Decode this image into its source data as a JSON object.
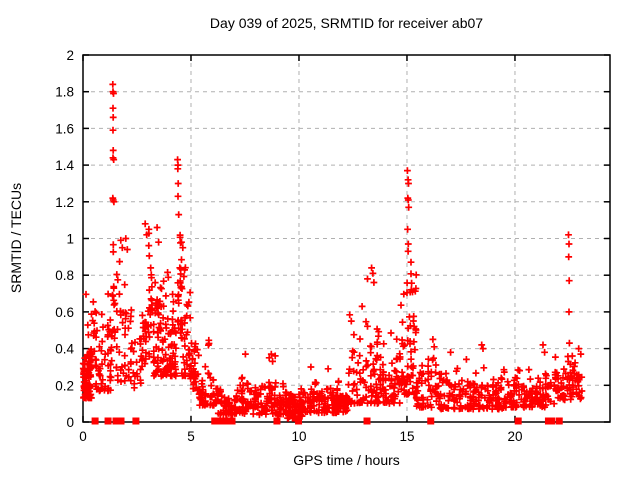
{
  "page": {
    "background": "#ffffff"
  },
  "chart_data": {
    "type": "scatter",
    "title": "Day 039 of 2025, SRMTID for receiver ab07",
    "xlabel": "GPS time / hours",
    "ylabel": "SRMTID / TECUs",
    "xlim": [
      0,
      24.4
    ],
    "ylim": [
      0,
      2
    ],
    "grid": true,
    "legend": "none",
    "marker": "plus",
    "zero_marker": "filled-square",
    "colors": {
      "marker": "#ff0000",
      "grid": "#b0b0b0",
      "axis": "#000000",
      "text": "#000000"
    },
    "xticks": [
      {
        "v": 0,
        "l": "0"
      },
      {
        "v": 5,
        "l": "5"
      },
      {
        "v": 10,
        "l": "10"
      },
      {
        "v": 15,
        "l": "15"
      },
      {
        "v": 20,
        "l": "20"
      }
    ],
    "yticks": [
      {
        "v": 0,
        "l": "0"
      },
      {
        "v": 0.2,
        "l": "0.2"
      },
      {
        "v": 0.4,
        "l": "0.4"
      },
      {
        "v": 0.6,
        "l": "0.6"
      },
      {
        "v": 0.8,
        "l": "0.8"
      },
      {
        "v": 1,
        "l": "1"
      },
      {
        "v": 1.2,
        "l": "1.2"
      },
      {
        "v": 1.4,
        "l": "1.4"
      },
      {
        "v": 1.6,
        "l": "1.6"
      },
      {
        "v": 1.8,
        "l": "1.8"
      },
      {
        "v": 2,
        "l": "2"
      }
    ],
    "clusters": [
      {
        "x0": 0.02,
        "x1": 0.38,
        "n": 90,
        "y0": 0.13,
        "y1": 0.43,
        "bias": 1.5,
        "seed": 1,
        "cpd": 14
      },
      {
        "x0": 0.12,
        "x1": 0.58,
        "n": 18,
        "y0": 0.35,
        "y1": 0.78,
        "bias": 1.1,
        "seed": 2,
        "cpd": 8
      },
      {
        "x0": 0.55,
        "x1": 1.35,
        "n": 55,
        "y0": 0.17,
        "y1": 0.8,
        "bias": 1.8,
        "seed": 3,
        "cpd": 8
      },
      {
        "x0": 1.34,
        "x1": 1.5,
        "n": 14,
        "y0": 0.3,
        "y1": 1.05,
        "bias": 1.0,
        "seed": 4,
        "cpd": 8
      },
      {
        "x0": 1.52,
        "x1": 2.3,
        "n": 45,
        "y0": 0.22,
        "y1": 1.0,
        "bias": 1.9,
        "seed": 5,
        "cpd": 8
      },
      {
        "x0": 2.3,
        "x1": 2.72,
        "n": 16,
        "y0": 0.18,
        "y1": 0.55,
        "bias": 1.4,
        "seed": 6,
        "cpd": 7
      },
      {
        "x0": 2.72,
        "x1": 3.22,
        "n": 45,
        "y0": 0.3,
        "y1": 1.07,
        "bias": 1.2,
        "seed": 7,
        "cpd": 8
      },
      {
        "x0": 3.22,
        "x1": 4.32,
        "n": 110,
        "y0": 0.25,
        "y1": 0.95,
        "bias": 1.5,
        "seed": 8,
        "cpd": 9
      },
      {
        "x0": 4.33,
        "x1": 4.58,
        "n": 22,
        "y0": 0.45,
        "y1": 1.12,
        "bias": 1.1,
        "seed": 9,
        "cpd": 8
      },
      {
        "x0": 4.55,
        "x1": 4.98,
        "n": 40,
        "y0": 0.25,
        "y1": 0.95,
        "bias": 1.8,
        "seed": 10,
        "cpd": 9
      },
      {
        "x0": 4.95,
        "x1": 5.38,
        "n": 30,
        "y0": 0.17,
        "y1": 0.55,
        "bias": 1.5,
        "seed": 11,
        "cpd": 9
      },
      {
        "x0": 5.35,
        "x1": 6.25,
        "n": 55,
        "y0": 0.09,
        "y1": 0.46,
        "bias": 1.7,
        "seed": 12,
        "cpd": 8
      },
      {
        "x0": 6.2,
        "x1": 9.45,
        "n": 200,
        "y0": 0.04,
        "y1": 0.27,
        "bias": 1.3,
        "seed": 13,
        "cpd": 8
      },
      {
        "x0": 9.45,
        "x1": 10.15,
        "n": 80,
        "y0": 0.02,
        "y1": 0.22,
        "bias": 1.5,
        "seed": 14,
        "cpd": 10
      },
      {
        "x0": 10.1,
        "x1": 12.25,
        "n": 150,
        "y0": 0.05,
        "y1": 0.27,
        "bias": 1.3,
        "seed": 15,
        "cpd": 8
      },
      {
        "x0": 12.25,
        "x1": 13.65,
        "n": 80,
        "y0": 0.1,
        "y1": 0.74,
        "bias": 1.8,
        "seed": 16,
        "cpd": 8
      },
      {
        "x0": 13.6,
        "x1": 14.75,
        "n": 75,
        "y0": 0.1,
        "y1": 0.62,
        "bias": 1.7,
        "seed": 17,
        "cpd": 8
      },
      {
        "x0": 14.7,
        "x1": 15.45,
        "n": 70,
        "y0": 0.15,
        "y1": 1.0,
        "bias": 1.5,
        "seed": 18,
        "cpd": 9
      },
      {
        "x0": 15.4,
        "x1": 16.55,
        "n": 60,
        "y0": 0.08,
        "y1": 0.42,
        "bias": 1.5,
        "seed": 19,
        "cpd": 8
      },
      {
        "x0": 16.5,
        "x1": 19.55,
        "n": 170,
        "y0": 0.07,
        "y1": 0.35,
        "bias": 1.5,
        "seed": 20,
        "cpd": 8
      },
      {
        "x0": 19.5,
        "x1": 21.85,
        "n": 130,
        "y0": 0.08,
        "y1": 0.32,
        "bias": 1.4,
        "seed": 21,
        "cpd": 8
      },
      {
        "x0": 21.85,
        "x1": 23.15,
        "n": 75,
        "y0": 0.12,
        "y1": 0.46,
        "bias": 1.2,
        "seed": 22,
        "cpd": 9
      }
    ],
    "outlier_points": [
      [
        1.38,
        1.84
      ],
      [
        1.39,
        1.8
      ],
      [
        1.41,
        1.79
      ],
      [
        1.39,
        1.71
      ],
      [
        1.4,
        1.66
      ],
      [
        1.39,
        1.59
      ],
      [
        1.4,
        1.48
      ],
      [
        1.39,
        1.44
      ],
      [
        1.42,
        1.43
      ],
      [
        1.38,
        1.22
      ],
      [
        1.4,
        1.21
      ],
      [
        1.43,
        1.2
      ],
      [
        1.75,
        0.99
      ],
      [
        1.82,
        0.95
      ],
      [
        1.98,
        1.0
      ],
      [
        2.05,
        0.94
      ],
      [
        2.88,
        1.08
      ],
      [
        2.95,
        1.02
      ],
      [
        3.05,
        1.05
      ],
      [
        3.43,
        1.06
      ],
      [
        3.5,
        0.98
      ],
      [
        4.38,
        1.43
      ],
      [
        4.4,
        1.4
      ],
      [
        4.39,
        1.38
      ],
      [
        4.41,
        1.3
      ],
      [
        4.4,
        1.23
      ],
      [
        4.43,
        1.13
      ],
      [
        4.56,
        0.98
      ],
      [
        4.62,
        0.95
      ],
      [
        7.52,
        0.37
      ],
      [
        8.62,
        0.35
      ],
      [
        8.72,
        0.37
      ],
      [
        8.9,
        0.36
      ],
      [
        8.78,
        0.33
      ],
      [
        10.55,
        0.3
      ],
      [
        11.35,
        0.29
      ],
      [
        12.42,
        0.55
      ],
      [
        12.92,
        0.63
      ],
      [
        13.17,
        0.78
      ],
      [
        13.36,
        0.84
      ],
      [
        13.42,
        0.81
      ],
      [
        13.47,
        0.76
      ],
      [
        15.02,
        1.37
      ],
      [
        15.05,
        1.32
      ],
      [
        15.07,
        1.3
      ],
      [
        15.04,
        1.22
      ],
      [
        15.06,
        1.21
      ],
      [
        15.08,
        1.17
      ],
      [
        15.03,
        1.05
      ],
      [
        15.06,
        0.97
      ],
      [
        15.05,
        0.93
      ],
      [
        16.2,
        0.45
      ],
      [
        16.26,
        0.41
      ],
      [
        17.02,
        0.38
      ],
      [
        18.46,
        0.42
      ],
      [
        18.52,
        0.4
      ],
      [
        21.3,
        0.42
      ],
      [
        21.37,
        0.38
      ],
      [
        22.48,
        1.02
      ],
      [
        22.5,
        0.97
      ],
      [
        22.49,
        0.9
      ],
      [
        22.51,
        0.77
      ],
      [
        22.5,
        0.6
      ],
      [
        22.52,
        0.43
      ],
      [
        22.95,
        0.4
      ],
      [
        23.05,
        0.37
      ]
    ],
    "zero_marker_hours": [
      0.56,
      1.16,
      1.53,
      1.76,
      2.45,
      6.1,
      6.4,
      6.6,
      6.9,
      8.98,
      9.98,
      13.15,
      16.1,
      20.15,
      21.55,
      21.7,
      22.05
    ]
  }
}
